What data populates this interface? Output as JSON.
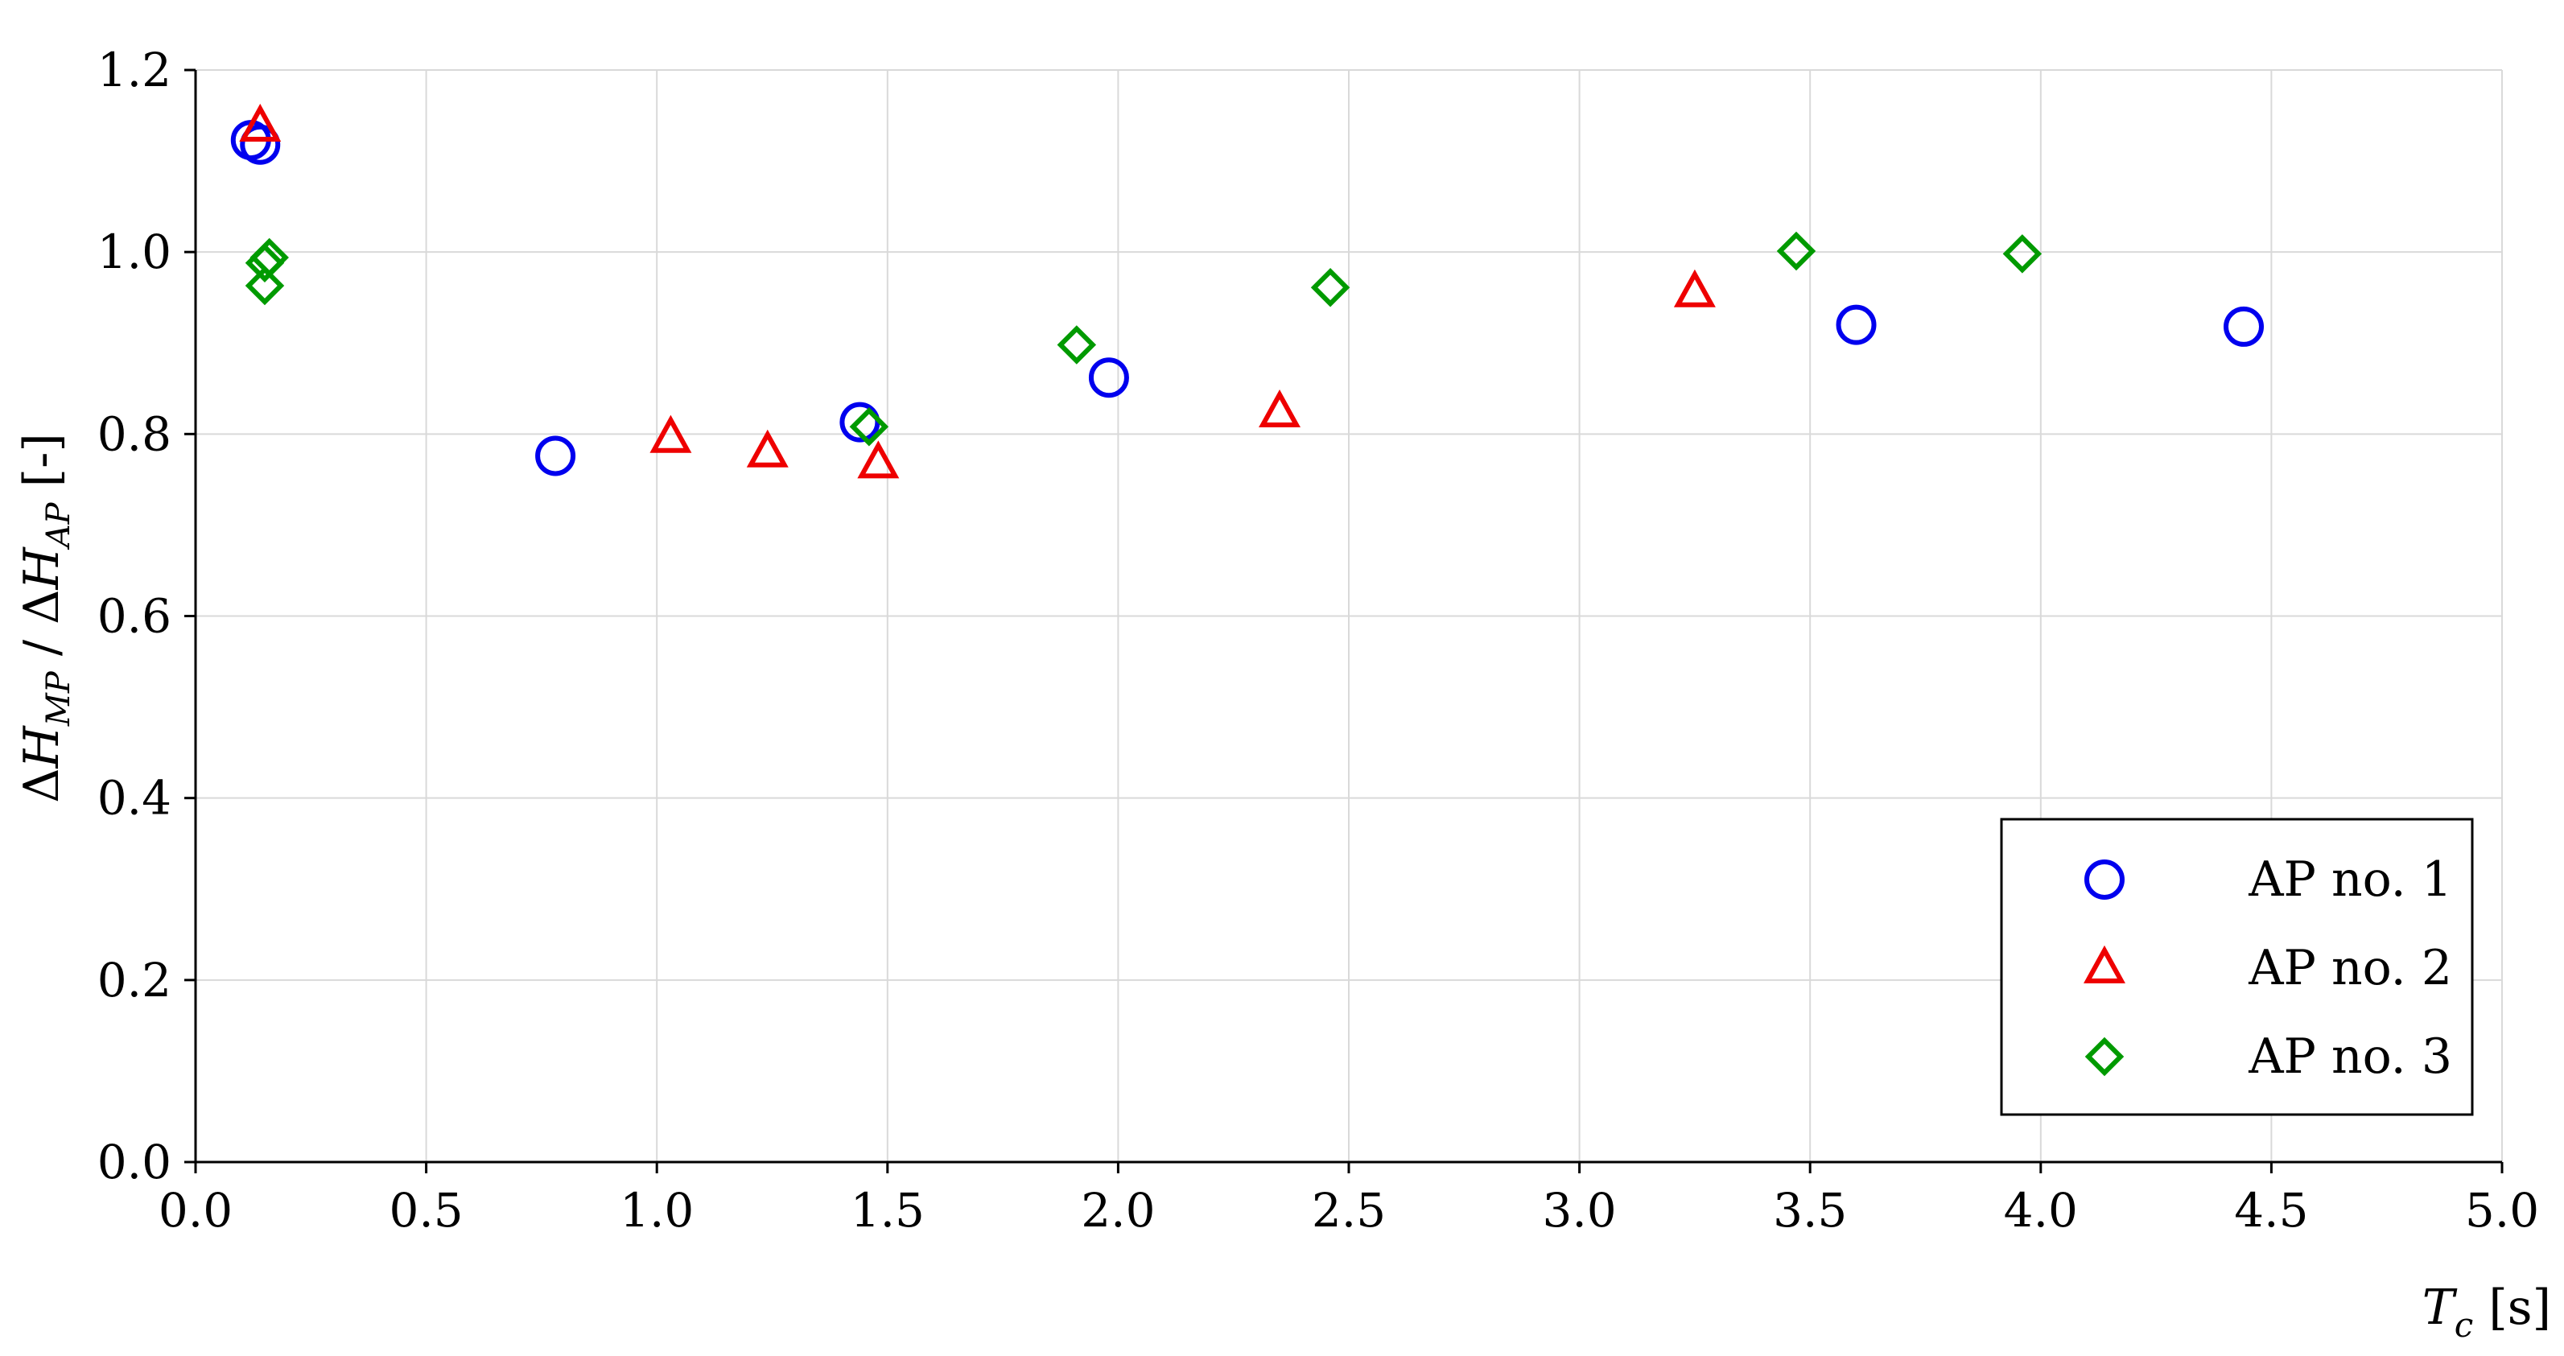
{
  "chart_data": {
    "type": "scatter",
    "title": "",
    "xlabel": {
      "main": "T",
      "sub": "c",
      "unit": " [s]"
    },
    "ylabel": {
      "delta": "Δ",
      "h": "H",
      "sub1": "MP",
      "sep": " / ",
      "sub2": "AP",
      "unit": " [-]"
    },
    "xlim": [
      0.0,
      5.0
    ],
    "ylim": [
      0.0,
      1.2
    ],
    "xticks": [
      0.0,
      0.5,
      1.0,
      1.5,
      2.0,
      2.5,
      3.0,
      3.5,
      4.0,
      4.5,
      5.0
    ],
    "yticks": [
      0.0,
      0.2,
      0.4,
      0.6,
      0.8,
      1.0,
      1.2
    ],
    "xtick_labels": [
      "0.0",
      "0.5",
      "1.0",
      "1.5",
      "2.0",
      "2.5",
      "3.0",
      "3.5",
      "4.0",
      "4.5",
      "5.0"
    ],
    "ytick_labels": [
      "0.0",
      "0.2",
      "0.4",
      "0.6",
      "0.8",
      "1.0",
      "1.2"
    ],
    "grid": true,
    "legend_position": "bottom-right",
    "series": [
      {
        "name": "AP no. 1",
        "marker": "circle",
        "color": "#0000ee",
        "points": [
          [
            0.12,
            1.123
          ],
          [
            0.14,
            1.118
          ],
          [
            0.78,
            0.776
          ],
          [
            1.44,
            0.813
          ],
          [
            1.98,
            0.862
          ],
          [
            3.6,
            0.92
          ],
          [
            4.44,
            0.918
          ]
        ]
      },
      {
        "name": "AP no. 2",
        "marker": "triangle",
        "color": "#ee0000",
        "points": [
          [
            0.14,
            1.138
          ],
          [
            1.03,
            0.796
          ],
          [
            1.24,
            0.78
          ],
          [
            1.48,
            0.768
          ],
          [
            2.35,
            0.824
          ],
          [
            3.25,
            0.956
          ]
        ]
      },
      {
        "name": "AP no. 3",
        "marker": "diamond",
        "color": "#009a00",
        "points": [
          [
            0.15,
            0.963
          ],
          [
            0.15,
            0.988
          ],
          [
            0.16,
            0.994
          ],
          [
            1.46,
            0.808
          ],
          [
            1.91,
            0.898
          ],
          [
            2.46,
            0.961
          ],
          [
            3.47,
            1.001
          ],
          [
            3.96,
            0.998
          ]
        ]
      }
    ]
  }
}
